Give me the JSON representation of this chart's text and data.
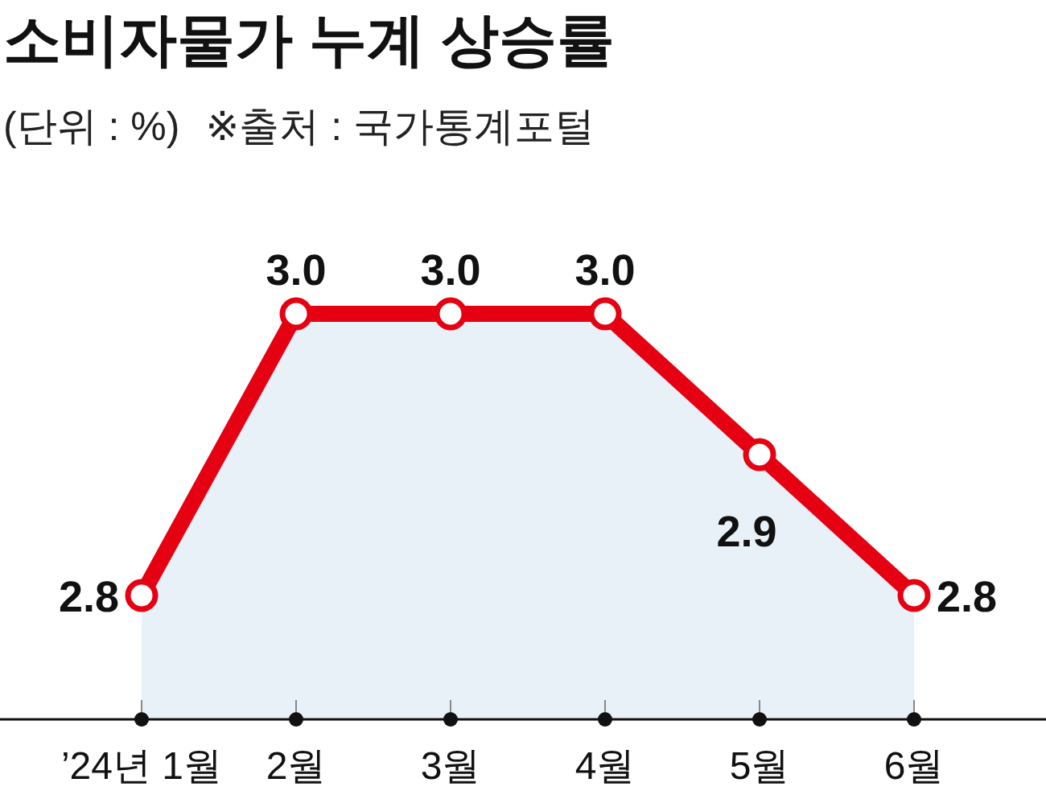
{
  "chart_data": {
    "type": "area",
    "title": "소비자물가 누계 상승률",
    "subtitle": "(단위 : %)",
    "annotations": [
      "※출처 : 국가통계포털"
    ],
    "categories": [
      "’24년 1월",
      "2월",
      "3월",
      "4월",
      "5월",
      "6월"
    ],
    "series": [
      {
        "color": "#e50012",
        "values": [
          2.8,
          3.0,
          3.0,
          3.0,
          2.9,
          2.8
        ],
        "value_labels": [
          "2.8",
          "3.0",
          "3.0",
          "3.0",
          "2.9",
          "2.8"
        ]
      }
    ],
    "marker": "circle",
    "line_style": "solid"
  }
}
